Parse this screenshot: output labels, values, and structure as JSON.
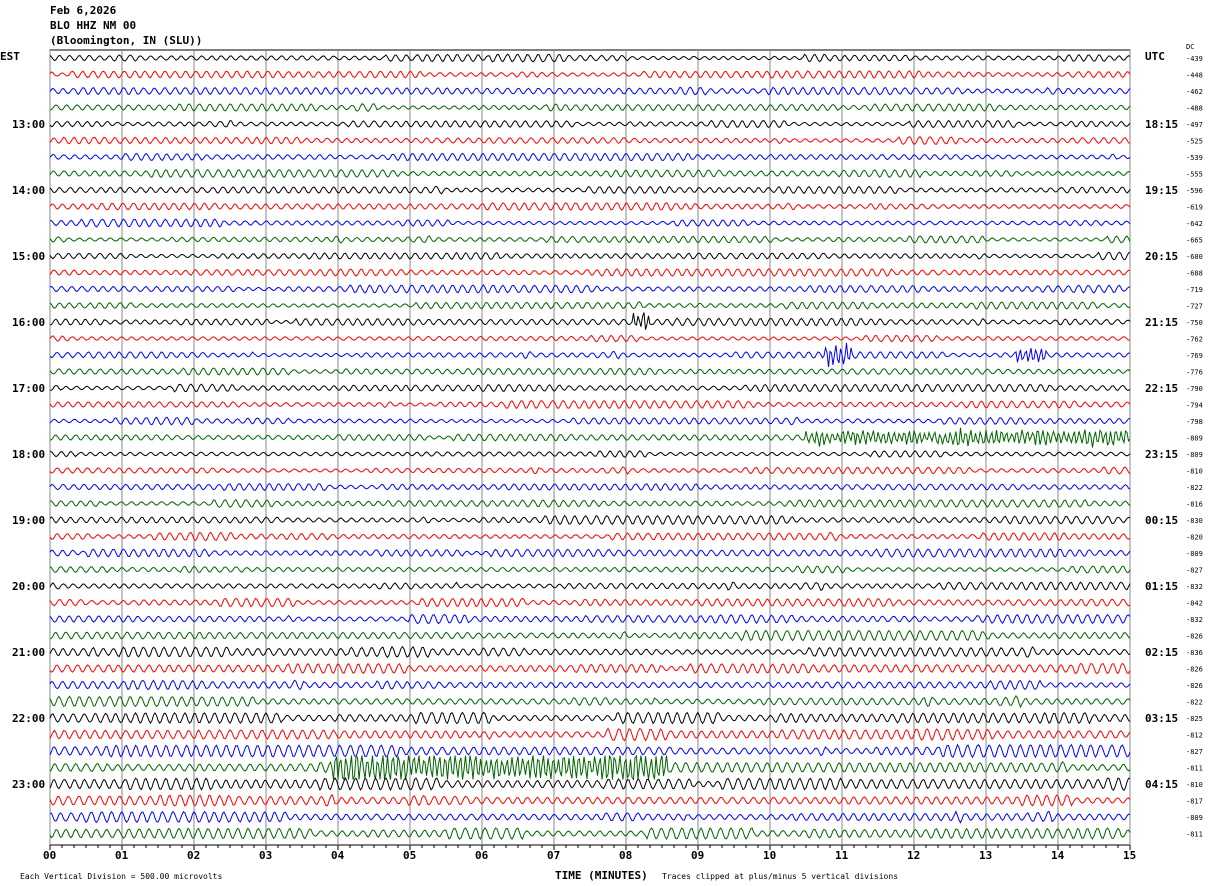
{
  "header": {
    "date": "Feb 6,2026",
    "station": "BLO HHZ NM 00",
    "location": "(Bloomington, IN (SLU))"
  },
  "chart_data": {
    "type": "line",
    "title": "Feb 6,2026 BLO HHZ NM 00 (Bloomington, IN (SLU))",
    "xlabel": "TIME (MINUTES)",
    "xlim": [
      0,
      15
    ],
    "x_ticks": [
      "00",
      "01",
      "02",
      "03",
      "04",
      "05",
      "06",
      "07",
      "08",
      "09",
      "10",
      "11",
      "12",
      "13",
      "14",
      "15"
    ],
    "left_axis_label": "EST",
    "right_axis_label": "UTC",
    "dc_label": "DC",
    "est_labels": [
      "13:00",
      "14:00",
      "15:00",
      "16:00",
      "17:00",
      "18:00",
      "19:00",
      "20:00",
      "21:00",
      "22:00",
      "23:00"
    ],
    "utc_labels": [
      "18:15",
      "19:15",
      "20:15",
      "21:15",
      "22:15",
      "23:15",
      "00:15",
      "01:15",
      "02:15",
      "03:15",
      "04:15"
    ],
    "trace_colors": [
      "#000000",
      "#ff0000",
      "#0000ff",
      "#006400"
    ],
    "dc_offsets": [
      -439,
      -448,
      -462,
      -488,
      -497,
      -525,
      -539,
      -555,
      -596,
      -619,
      -642,
      -665,
      -680,
      -688,
      -719,
      -727,
      -750,
      -762,
      -769,
      -776,
      -790,
      -794,
      -798,
      -809,
      -809,
      -810,
      -822,
      -816,
      -830,
      -820,
      -809,
      -827,
      -832,
      -842,
      -832,
      -826,
      -836,
      -826,
      -826,
      -822,
      -825,
      -812,
      -827,
      -811,
      -810,
      -817,
      -809,
      -811
    ],
    "noise_level": [
      1,
      1,
      1,
      1,
      1,
      1,
      1,
      1,
      1,
      1,
      1,
      1,
      1,
      1,
      1,
      1,
      1,
      1,
      1,
      1,
      1,
      1,
      1,
      1,
      1,
      1,
      1,
      1,
      1.1,
      1.1,
      1.1,
      1.1,
      1.2,
      1.2,
      1.2,
      1.3,
      1.4,
      1.4,
      1.4,
      1.5,
      1.6,
      1.6,
      1.6,
      1.5,
      1.7,
      1.7,
      1.6,
      1.6
    ],
    "events": [
      {
        "trace": 16,
        "start_min": 8.1,
        "end_min": 8.35,
        "amplitude": 3
      },
      {
        "trace": 18,
        "start_min": 10.75,
        "end_min": 11.15,
        "amplitude": 3
      },
      {
        "trace": 18,
        "start_min": 13.4,
        "end_min": 13.85,
        "amplitude": 2.5
      },
      {
        "trace": 23,
        "start_min": 10.5,
        "end_min": 15,
        "amplitude": 2.5
      },
      {
        "trace": 43,
        "start_min": 3.9,
        "end_min": 8.6,
        "amplitude": 2.8
      }
    ],
    "scale_note": "Each Vertical Division =  500.00 microvolts",
    "clip_note": "Traces clipped at plus/minus 5 vertical divisions"
  }
}
